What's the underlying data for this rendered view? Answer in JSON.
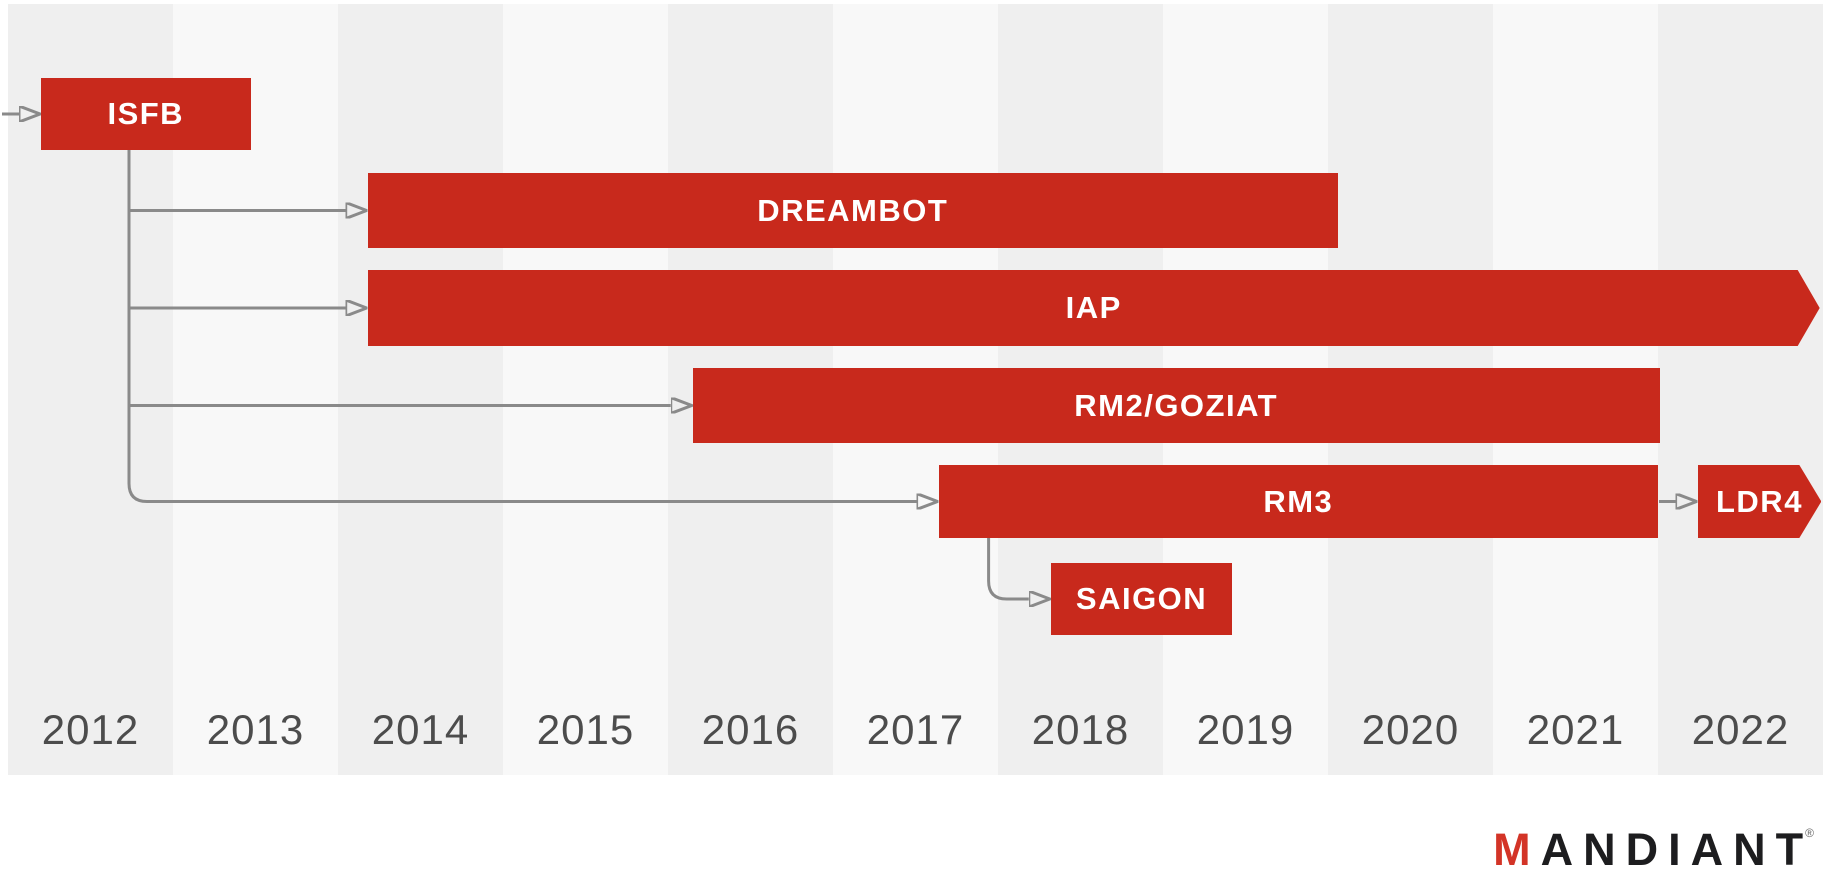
{
  "chart_data": {
    "type": "bar",
    "variant": "gantt-timeline",
    "x_axis": {
      "unit": "year",
      "range": [
        2012,
        2023
      ],
      "ticks": [
        "2012",
        "2013",
        "2014",
        "2015",
        "2016",
        "2017",
        "2018",
        "2019",
        "2020",
        "2021",
        "2022"
      ]
    },
    "bars": [
      {
        "id": "isfb",
        "label": "ISFB",
        "start": 2012.2,
        "end": 2013.47,
        "row": 0,
        "arrow_tip": false
      },
      {
        "id": "dreambot",
        "label": "DREAMBOT",
        "start": 2014.18,
        "end": 2020.06,
        "row": 1,
        "arrow_tip": false
      },
      {
        "id": "iap",
        "label": "IAP",
        "start": 2014.18,
        "end": 2022.98,
        "row": 2,
        "arrow_tip": true
      },
      {
        "id": "rm2",
        "label": "RM2/GOZIAT",
        "start": 2016.15,
        "end": 2022.01,
        "row": 3,
        "arrow_tip": false
      },
      {
        "id": "rm3",
        "label": "RM3",
        "start": 2017.64,
        "end": 2022.0,
        "row": 4,
        "arrow_tip": false
      },
      {
        "id": "ldr4",
        "label": "LDR4",
        "start": 2022.24,
        "end": 2022.99,
        "row": 4,
        "arrow_tip": true
      },
      {
        "id": "saigon",
        "label": "SAIGON",
        "start": 2018.32,
        "end": 2019.42,
        "row": 5,
        "arrow_tip": false
      }
    ],
    "edges": [
      {
        "from": "start",
        "to": "isfb"
      },
      {
        "from": "isfb",
        "to": "dreambot"
      },
      {
        "from": "isfb",
        "to": "iap"
      },
      {
        "from": "isfb",
        "to": "rm2"
      },
      {
        "from": "isfb",
        "to": "rm3"
      },
      {
        "from": "rm3",
        "to": "saigon"
      },
      {
        "from": "rm3",
        "to": "ldr4"
      }
    ],
    "grid": "alternating-year-columns",
    "legend": "none"
  },
  "colors": {
    "bar_red": "#c8291c",
    "line_gray": "#8a8a8a",
    "tick_label": "#4c4c4c",
    "stripe_even": "#efefef",
    "stripe_odd": "#f8f8f8",
    "logo_black": "#1d1d1f",
    "logo_red": "#d33427",
    "background": "#ffffff"
  },
  "footer": {
    "brand_prefix": "M",
    "brand_rest": "ANDIANT",
    "brand_mark": "®"
  }
}
